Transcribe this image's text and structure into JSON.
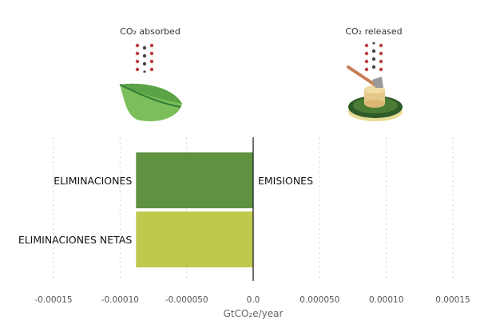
{
  "captions": {
    "absorbed": "CO₂ absorbed",
    "released": "CO₂ released"
  },
  "icons": {
    "left": "leaf-icon",
    "right": "tree-stump-axe-icon",
    "molecules": "co2-molecule-icon"
  },
  "chart_data": {
    "type": "bar",
    "orientation": "horizontal",
    "categories": [
      "ELIMINACIONES",
      "ELIMINACIONES NETAS"
    ],
    "values": [
      -8.8e-05,
      -8.8e-05
    ],
    "bar_colors": [
      "#5e9140",
      "#bfc94d"
    ],
    "positive_side_label": "EMISIONES",
    "xlabel": "GtCO₂e/year",
    "xlim": [
      -0.00015,
      0.00015
    ],
    "xticks": [
      -0.00015,
      -0.0001,
      -5e-05,
      0,
      5e-05,
      0.0001,
      0.00015
    ],
    "xtick_labels": [
      "-0.00015",
      "-0.00010",
      "-0.000050",
      "0.0",
      "0.000050",
      "0.00010",
      "0.00015"
    ],
    "grid": "vertical dotted"
  }
}
